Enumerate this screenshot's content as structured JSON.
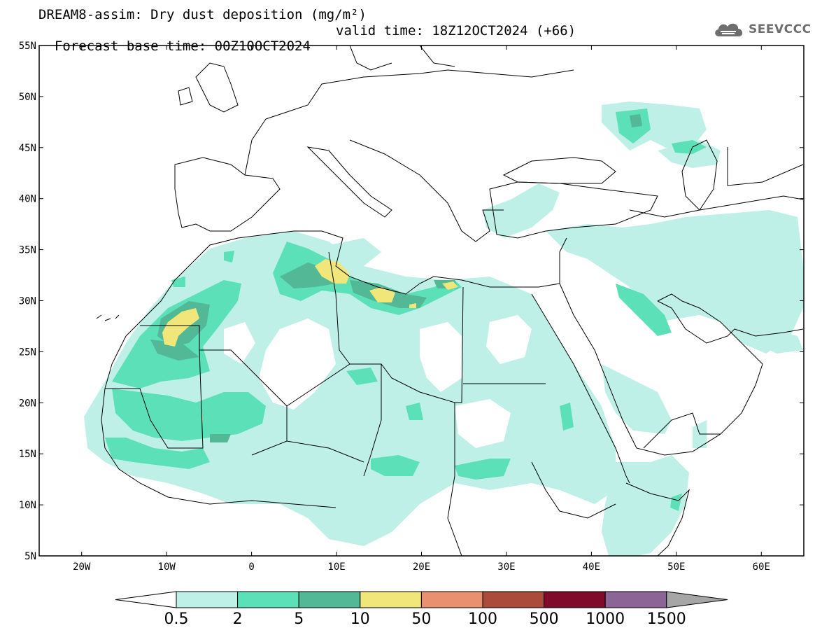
{
  "title": {
    "line1": "DREAM8-assim: Dry dust deposition (mg/m²)",
    "base_time": "Forecast base time: 00Z10OCT2024",
    "valid_time": "valid time: 18Z12OCT2024 (+66)"
  },
  "logo": {
    "text": "SEEVCCC",
    "icon": "cloud-icon"
  },
  "map": {
    "lat_labels": [
      "55N",
      "50N",
      "45N",
      "40N",
      "35N",
      "30N",
      "25N",
      "20N",
      "15N",
      "10N",
      "5N"
    ],
    "lon_labels": [
      "20W",
      "10W",
      "0",
      "10E",
      "20E",
      "30E",
      "40E",
      "50E",
      "60E"
    ],
    "lat_range": [
      5,
      55
    ],
    "lon_range": [
      -25,
      65
    ]
  },
  "colorbar": {
    "labels": [
      "0.5",
      "2",
      "5",
      "10",
      "50",
      "100",
      "500",
      "1000",
      "1500"
    ],
    "colors": [
      "#ffffff",
      "#bff0e8",
      "#5ce0b8",
      "#52b896",
      "#f0e67a",
      "#e89070",
      "#aa4b3c",
      "#800a2a",
      "#8c6496",
      "#a6a6a6"
    ]
  },
  "colors": {
    "level1": "#bff0e8",
    "level2": "#5ce0b8",
    "level3": "#52b896",
    "level4": "#f0e67a",
    "coast": "#000000"
  }
}
